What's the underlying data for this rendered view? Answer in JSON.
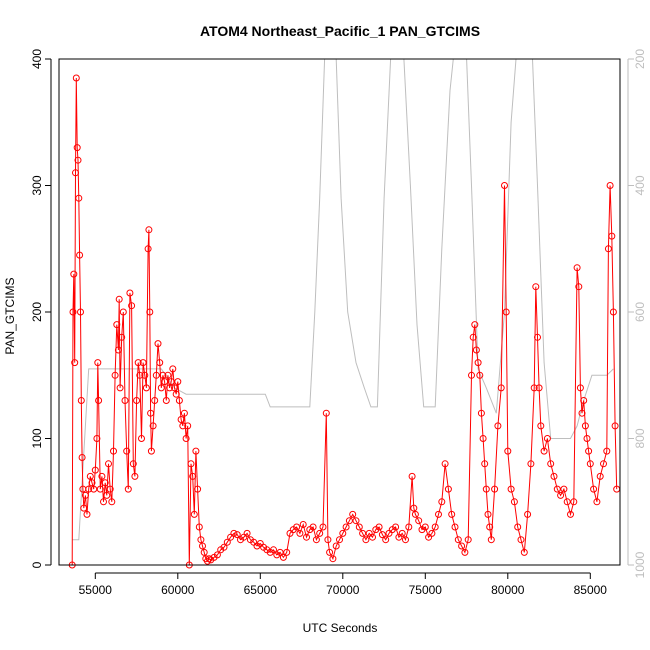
{
  "chart_data": {
    "type": "scatter",
    "title": "ATOM4 Northeast_Pacific_1 PAN_GTCIMS",
    "xlabel": "UTC Seconds",
    "ylabel": "PAN_GTCIMS",
    "xlim": [
      52800,
      86800
    ],
    "ylim": [
      0,
      400
    ],
    "x_ticks": [
      55000,
      60000,
      65000,
      70000,
      75000,
      80000,
      85000
    ],
    "y_ticks": [
      0,
      100,
      200,
      300,
      400
    ],
    "right_axis": {
      "label": "",
      "ylim": [
        1000,
        200
      ],
      "ticks": [
        200,
        400,
        600,
        800,
        1000
      ],
      "color": "#bebebe"
    },
    "grid": false,
    "legend": "none",
    "series": [
      {
        "style": "line+circles",
        "color": "#ff0000",
        "points": [
          [
            53600,
            0
          ],
          [
            53650,
            200
          ],
          [
            53700,
            230
          ],
          [
            53750,
            160
          ],
          [
            53800,
            310
          ],
          [
            53850,
            385
          ],
          [
            53900,
            330
          ],
          [
            53950,
            320
          ],
          [
            54000,
            290
          ],
          [
            54050,
            245
          ],
          [
            54100,
            200
          ],
          [
            54150,
            130
          ],
          [
            54200,
            85
          ],
          [
            54250,
            60
          ],
          [
            54300,
            45
          ],
          [
            54400,
            55
          ],
          [
            54500,
            40
          ],
          [
            54600,
            60
          ],
          [
            54700,
            70
          ],
          [
            54800,
            65
          ],
          [
            54900,
            60
          ],
          [
            55000,
            75
          ],
          [
            55100,
            100
          ],
          [
            55150,
            160
          ],
          [
            55200,
            130
          ],
          [
            55300,
            60
          ],
          [
            55400,
            70
          ],
          [
            55500,
            50
          ],
          [
            55600,
            65
          ],
          [
            55700,
            55
          ],
          [
            55800,
            80
          ],
          [
            55900,
            60
          ],
          [
            56000,
            50
          ],
          [
            56100,
            90
          ],
          [
            56200,
            150
          ],
          [
            56300,
            190
          ],
          [
            56400,
            170
          ],
          [
            56450,
            210
          ],
          [
            56500,
            140
          ],
          [
            56600,
            180
          ],
          [
            56700,
            200
          ],
          [
            56800,
            130
          ],
          [
            56900,
            90
          ],
          [
            57000,
            60
          ],
          [
            57100,
            215
          ],
          [
            57200,
            205
          ],
          [
            57300,
            80
          ],
          [
            57400,
            70
          ],
          [
            57500,
            130
          ],
          [
            57600,
            160
          ],
          [
            57700,
            150
          ],
          [
            57800,
            100
          ],
          [
            57900,
            160
          ],
          [
            58000,
            150
          ],
          [
            58100,
            140
          ],
          [
            58200,
            250
          ],
          [
            58250,
            265
          ],
          [
            58300,
            200
          ],
          [
            58350,
            120
          ],
          [
            58400,
            90
          ],
          [
            58500,
            110
          ],
          [
            58600,
            130
          ],
          [
            58700,
            150
          ],
          [
            58800,
            175
          ],
          [
            58900,
            160
          ],
          [
            59000,
            140
          ],
          [
            59100,
            150
          ],
          [
            59200,
            145
          ],
          [
            59300,
            130
          ],
          [
            59400,
            150
          ],
          [
            59500,
            140
          ],
          [
            59600,
            145
          ],
          [
            59700,
            155
          ],
          [
            59800,
            140
          ],
          [
            59900,
            135
          ],
          [
            60000,
            145
          ],
          [
            60100,
            130
          ],
          [
            60200,
            115
          ],
          [
            60300,
            110
          ],
          [
            60400,
            120
          ],
          [
            60500,
            100
          ],
          [
            60600,
            110
          ],
          [
            60700,
            0
          ],
          [
            60800,
            80
          ],
          [
            60900,
            70
          ],
          [
            61000,
            40
          ],
          [
            61100,
            90
          ],
          [
            61200,
            60
          ],
          [
            61300,
            30
          ],
          [
            61400,
            20
          ],
          [
            61500,
            15
          ],
          [
            61600,
            10
          ],
          [
            61700,
            5
          ],
          [
            61800,
            3
          ],
          [
            61900,
            5
          ],
          [
            62000,
            4
          ],
          [
            62200,
            6
          ],
          [
            62400,
            8
          ],
          [
            62600,
            12
          ],
          [
            62800,
            14
          ],
          [
            63000,
            18
          ],
          [
            63200,
            22
          ],
          [
            63400,
            25
          ],
          [
            63600,
            24
          ],
          [
            63800,
            20
          ],
          [
            64000,
            22
          ],
          [
            64200,
            25
          ],
          [
            64400,
            20
          ],
          [
            64600,
            18
          ],
          [
            64800,
            15
          ],
          [
            65000,
            17
          ],
          [
            65200,
            14
          ],
          [
            65400,
            12
          ],
          [
            65600,
            10
          ],
          [
            65800,
            12
          ],
          [
            66000,
            8
          ],
          [
            66200,
            10
          ],
          [
            66400,
            6
          ],
          [
            66600,
            10
          ],
          [
            66800,
            25
          ],
          [
            67000,
            28
          ],
          [
            67200,
            30
          ],
          [
            67400,
            25
          ],
          [
            67600,
            32
          ],
          [
            67800,
            22
          ],
          [
            68000,
            28
          ],
          [
            68200,
            30
          ],
          [
            68400,
            20
          ],
          [
            68600,
            25
          ],
          [
            68800,
            30
          ],
          [
            69000,
            120
          ],
          [
            69100,
            20
          ],
          [
            69200,
            10
          ],
          [
            69400,
            5
          ],
          [
            69600,
            15
          ],
          [
            69800,
            20
          ],
          [
            70000,
            25
          ],
          [
            70200,
            30
          ],
          [
            70400,
            35
          ],
          [
            70600,
            40
          ],
          [
            70800,
            35
          ],
          [
            71000,
            30
          ],
          [
            71200,
            25
          ],
          [
            71400,
            20
          ],
          [
            71600,
            25
          ],
          [
            71800,
            22
          ],
          [
            72000,
            28
          ],
          [
            72200,
            30
          ],
          [
            72400,
            24
          ],
          [
            72600,
            20
          ],
          [
            72800,
            25
          ],
          [
            73000,
            28
          ],
          [
            73200,
            30
          ],
          [
            73400,
            22
          ],
          [
            73600,
            25
          ],
          [
            73800,
            20
          ],
          [
            74000,
            30
          ],
          [
            74200,
            70
          ],
          [
            74300,
            45
          ],
          [
            74400,
            40
          ],
          [
            74600,
            35
          ],
          [
            74800,
            28
          ],
          [
            75000,
            30
          ],
          [
            75200,
            22
          ],
          [
            75400,
            25
          ],
          [
            75600,
            30
          ],
          [
            75800,
            40
          ],
          [
            76000,
            50
          ],
          [
            76200,
            80
          ],
          [
            76400,
            60
          ],
          [
            76600,
            40
          ],
          [
            76800,
            30
          ],
          [
            77000,
            20
          ],
          [
            77200,
            15
          ],
          [
            77400,
            10
          ],
          [
            77600,
            20
          ],
          [
            77800,
            150
          ],
          [
            77900,
            180
          ],
          [
            78000,
            190
          ],
          [
            78100,
            170
          ],
          [
            78200,
            160
          ],
          [
            78300,
            150
          ],
          [
            78400,
            120
          ],
          [
            78500,
            100
          ],
          [
            78600,
            80
          ],
          [
            78700,
            60
          ],
          [
            78800,
            40
          ],
          [
            78900,
            30
          ],
          [
            79000,
            20
          ],
          [
            79200,
            60
          ],
          [
            79400,
            110
          ],
          [
            79600,
            140
          ],
          [
            79800,
            300
          ],
          [
            79900,
            200
          ],
          [
            80000,
            90
          ],
          [
            80200,
            60
          ],
          [
            80400,
            50
          ],
          [
            80600,
            30
          ],
          [
            80800,
            20
          ],
          [
            81000,
            10
          ],
          [
            81200,
            40
          ],
          [
            81400,
            80
          ],
          [
            81600,
            140
          ],
          [
            81700,
            220
          ],
          [
            81800,
            180
          ],
          [
            81900,
            140
          ],
          [
            82000,
            110
          ],
          [
            82200,
            90
          ],
          [
            82400,
            100
          ],
          [
            82600,
            80
          ],
          [
            82800,
            70
          ],
          [
            83000,
            60
          ],
          [
            83200,
            55
          ],
          [
            83400,
            60
          ],
          [
            83600,
            50
          ],
          [
            83800,
            40
          ],
          [
            84000,
            50
          ],
          [
            84200,
            235
          ],
          [
            84300,
            220
          ],
          [
            84400,
            140
          ],
          [
            84500,
            120
          ],
          [
            84600,
            130
          ],
          [
            84700,
            110
          ],
          [
            84800,
            100
          ],
          [
            84900,
            90
          ],
          [
            85000,
            80
          ],
          [
            85200,
            60
          ],
          [
            85400,
            50
          ],
          [
            85600,
            70
          ],
          [
            85800,
            80
          ],
          [
            86000,
            90
          ],
          [
            86100,
            250
          ],
          [
            86200,
            300
          ],
          [
            86300,
            260
          ],
          [
            86400,
            200
          ],
          [
            86500,
            110
          ],
          [
            86600,
            60
          ]
        ]
      },
      {
        "style": "line",
        "axis": "right",
        "color": "#bebebe",
        "points": [
          [
            53600,
            960
          ],
          [
            54000,
            960
          ],
          [
            54600,
            690
          ],
          [
            55000,
            690
          ],
          [
            55500,
            690
          ],
          [
            56000,
            690
          ],
          [
            57000,
            690
          ],
          [
            58000,
            690
          ],
          [
            59000,
            690
          ],
          [
            59800,
            720
          ],
          [
            60500,
            730
          ],
          [
            61500,
            730
          ],
          [
            62500,
            730
          ],
          [
            63500,
            730
          ],
          [
            64500,
            730
          ],
          [
            65300,
            730
          ],
          [
            65600,
            750
          ],
          [
            66500,
            750
          ],
          [
            67500,
            750
          ],
          [
            68000,
            750
          ],
          [
            68300,
            600
          ],
          [
            68600,
            420
          ],
          [
            68900,
            200
          ],
          [
            69600,
            200
          ],
          [
            69900,
            420
          ],
          [
            70300,
            600
          ],
          [
            70800,
            680
          ],
          [
            71300,
            720
          ],
          [
            71700,
            750
          ],
          [
            72100,
            750
          ],
          [
            72500,
            420
          ],
          [
            72900,
            200
          ],
          [
            73700,
            200
          ],
          [
            74100,
            400
          ],
          [
            74500,
            620
          ],
          [
            74900,
            750
          ],
          [
            75600,
            750
          ],
          [
            76000,
            500
          ],
          [
            76500,
            250
          ],
          [
            76700,
            200
          ],
          [
            77500,
            200
          ],
          [
            77800,
            400
          ],
          [
            78200,
            690
          ],
          [
            78700,
            720
          ],
          [
            79300,
            760
          ],
          [
            79800,
            600
          ],
          [
            80200,
            300
          ],
          [
            80500,
            200
          ],
          [
            81500,
            200
          ],
          [
            81800,
            400
          ],
          [
            82200,
            680
          ],
          [
            82600,
            800
          ],
          [
            83200,
            800
          ],
          [
            83800,
            800
          ],
          [
            84200,
            780
          ],
          [
            84600,
            740
          ],
          [
            85100,
            700
          ],
          [
            85500,
            700
          ],
          [
            86000,
            700
          ],
          [
            86400,
            690
          ]
        ]
      }
    ]
  }
}
